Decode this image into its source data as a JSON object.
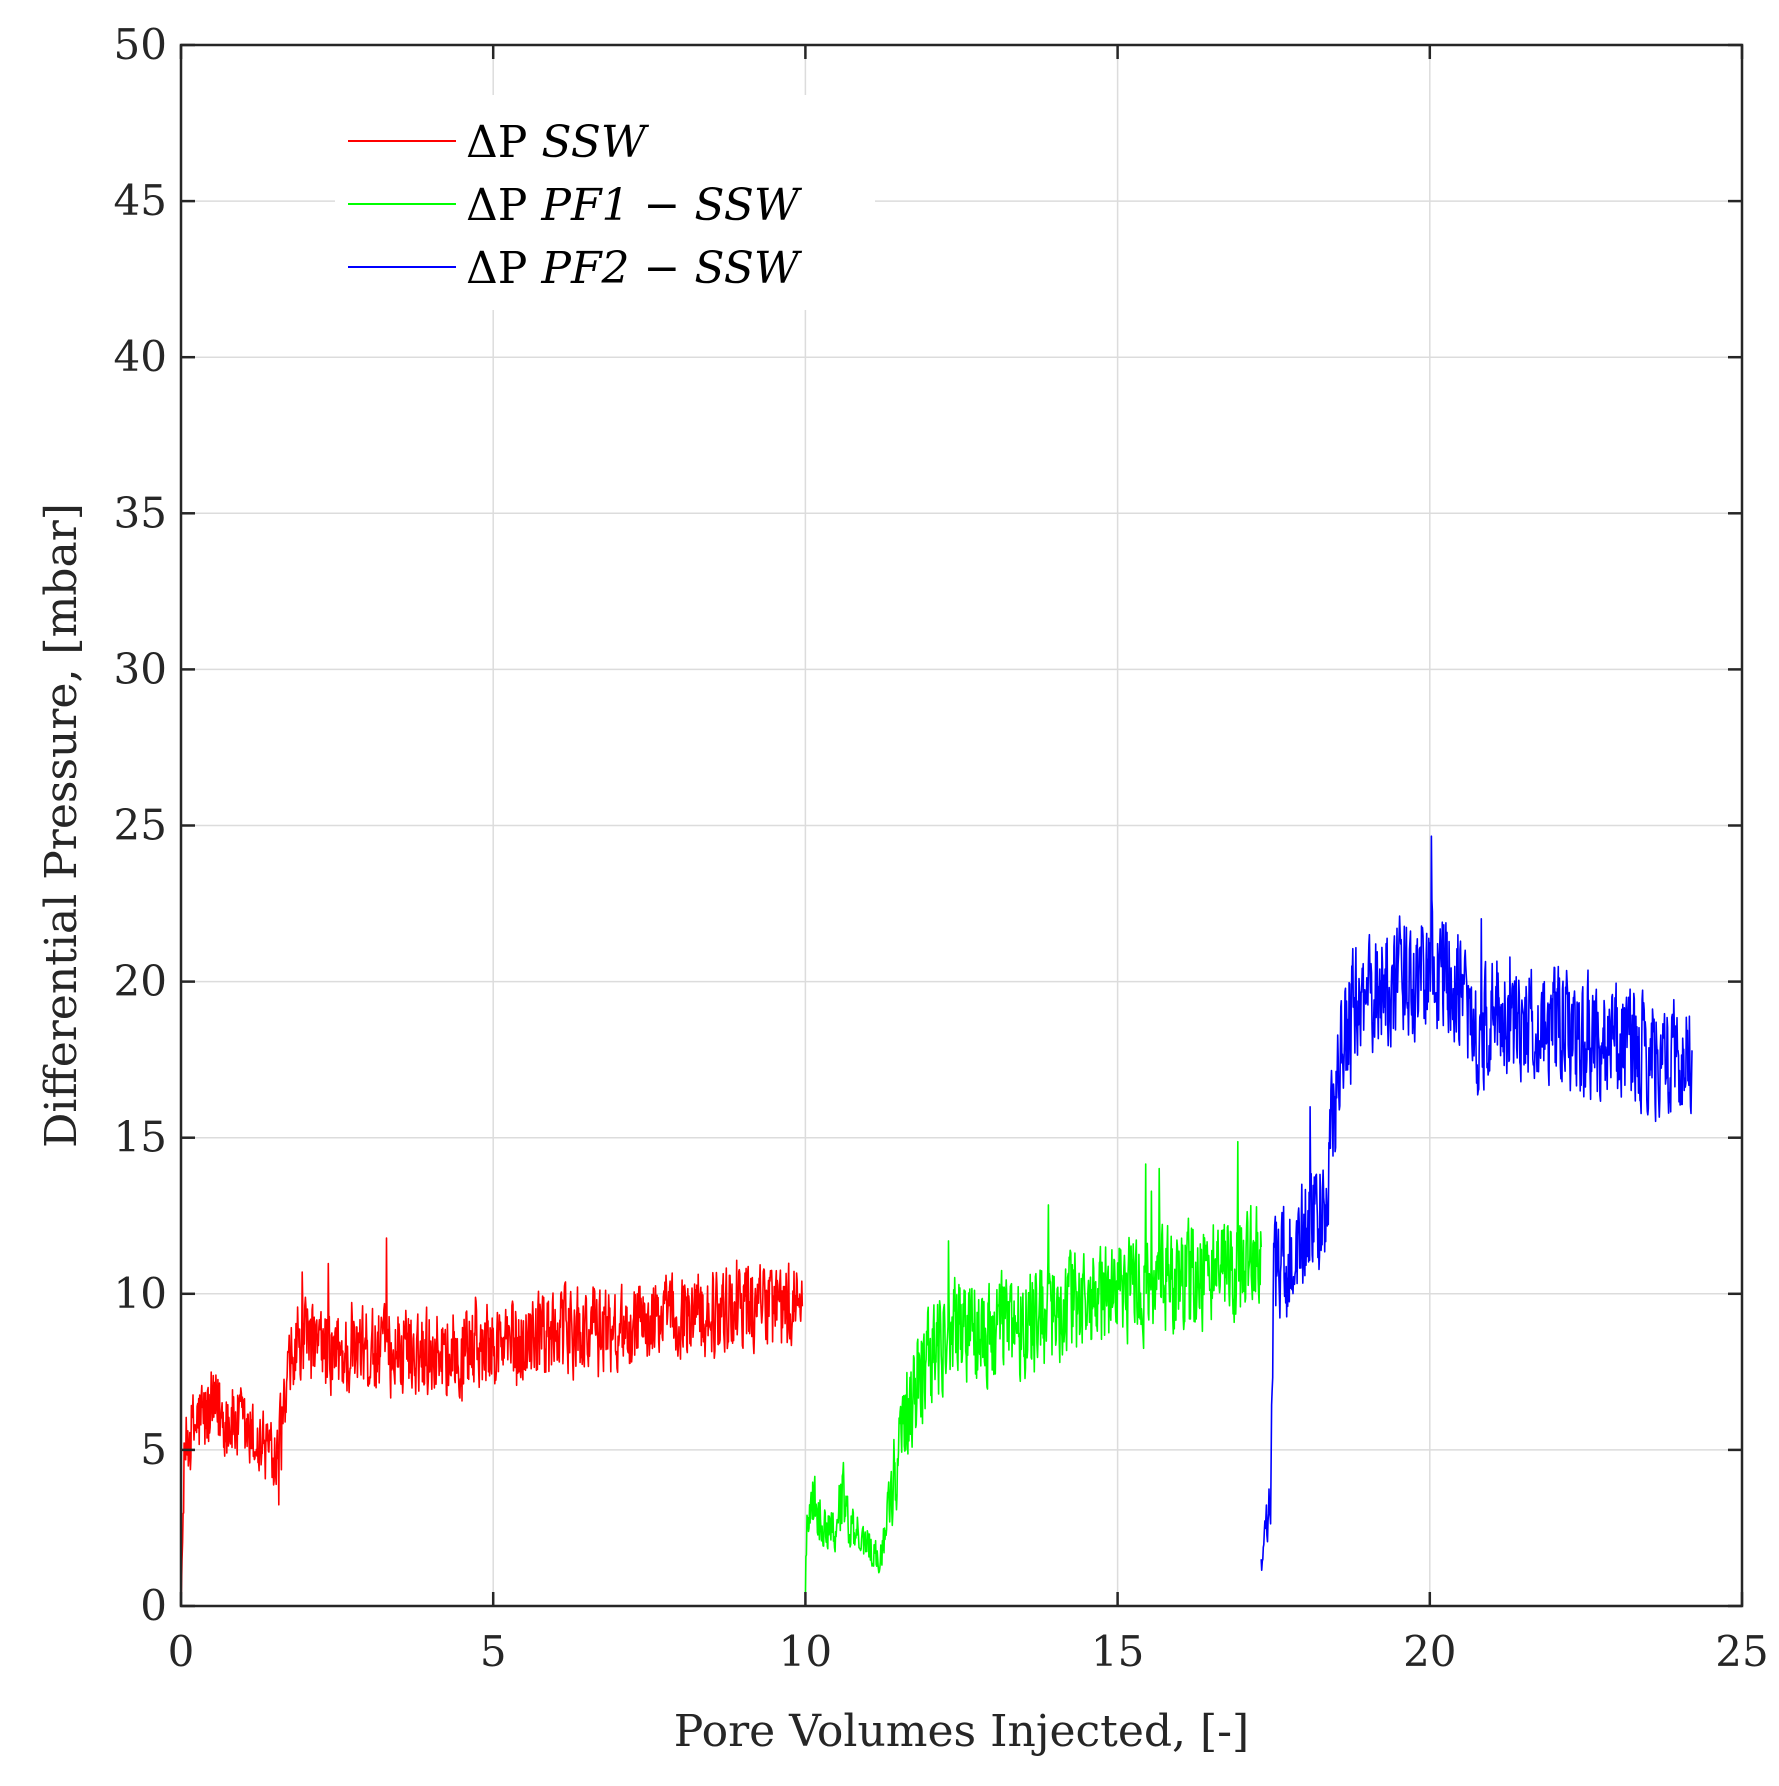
{
  "chart_data": {
    "type": "line",
    "title": "",
    "xlabel": "Pore Volumes Injected, [-]",
    "ylabel": "Differential Pressure, [mbar]",
    "xlim": [
      0,
      25
    ],
    "ylim": [
      0,
      50
    ],
    "grid": true,
    "legend_position": "top-left",
    "xticks": [
      0,
      5,
      10,
      15,
      20,
      25
    ],
    "yticks": [
      0,
      5,
      10,
      15,
      20,
      25,
      30,
      35,
      40,
      45,
      50
    ],
    "series": [
      {
        "name": "ΔP SSW",
        "legend_prefix": "ΔP",
        "legend_math": "SSW",
        "color": "#ff0000",
        "noise": 1.6,
        "points": [
          [
            0,
            0
          ],
          [
            0.02,
            1.5
          ],
          [
            0.05,
            4.5
          ],
          [
            0.1,
            5.3
          ],
          [
            0.3,
            6.0
          ],
          [
            0.6,
            6.2
          ],
          [
            0.9,
            5.8
          ],
          [
            1.2,
            5.2
          ],
          [
            1.5,
            5.0
          ],
          [
            1.6,
            5.5
          ],
          [
            1.75,
            7.5
          ],
          [
            1.9,
            8.4
          ],
          [
            2.5,
            8.0
          ],
          [
            3.0,
            8.1
          ],
          [
            4.0,
            8.2
          ],
          [
            5.0,
            8.3
          ],
          [
            6.0,
            8.7
          ],
          [
            7.0,
            8.9
          ],
          [
            8.0,
            9.3
          ],
          [
            9.0,
            9.5
          ],
          [
            9.9,
            9.6
          ],
          [
            9.95,
            9.6
          ]
        ]
      },
      {
        "name": "ΔP PF1 - SSW",
        "legend_prefix": "ΔP",
        "legend_math": "PF1 − SSW",
        "color": "#00ff00",
        "noise": 2.0,
        "points": [
          [
            10.0,
            0.2
          ],
          [
            10.03,
            3.0
          ],
          [
            10.1,
            3.5
          ],
          [
            10.3,
            2.6
          ],
          [
            10.5,
            2.5
          ],
          [
            10.6,
            3.8
          ],
          [
            10.7,
            2.5
          ],
          [
            11.0,
            2.0
          ],
          [
            11.2,
            1.5
          ],
          [
            11.4,
            3.8
          ],
          [
            11.6,
            6.5
          ],
          [
            12.0,
            8.0
          ],
          [
            12.4,
            9.0
          ],
          [
            13.0,
            8.8
          ],
          [
            14.0,
            9.5
          ],
          [
            15.0,
            10.0
          ],
          [
            16.0,
            10.5
          ],
          [
            17.0,
            10.8
          ],
          [
            17.3,
            11.5
          ]
        ]
      },
      {
        "name": "ΔP PF2 - SSW",
        "legend_prefix": "ΔP",
        "legend_math": "PF2 − SSW",
        "color": "#0000ff",
        "noise": 2.2,
        "points": [
          [
            17.3,
            1.5
          ],
          [
            17.35,
            2.5
          ],
          [
            17.45,
            3.0
          ],
          [
            17.5,
            11.0
          ],
          [
            17.8,
            11.0
          ],
          [
            18.0,
            12.0
          ],
          [
            18.3,
            12.5
          ],
          [
            18.5,
            16.5
          ],
          [
            18.7,
            19.0
          ],
          [
            19.0,
            19.5
          ],
          [
            19.5,
            20.0
          ],
          [
            20.0,
            20.3
          ],
          [
            20.5,
            20.0
          ],
          [
            20.7,
            18.0
          ],
          [
            21.0,
            19.0
          ],
          [
            22.0,
            18.5
          ],
          [
            23.0,
            18.0
          ],
          [
            24.0,
            17.5
          ],
          [
            24.2,
            17.8
          ]
        ]
      }
    ]
  }
}
